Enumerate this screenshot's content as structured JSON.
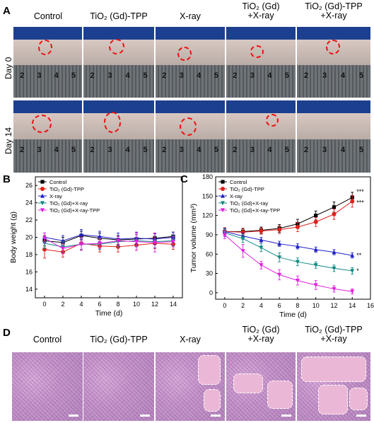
{
  "panel_labels": {
    "a": "A",
    "b": "B",
    "c": "C",
    "d": "D"
  },
  "groups": [
    "Control",
    "TiO₂ (Gd)-TPP",
    "X-ray",
    "TiO₂ (Gd)\n+X-ray",
    "TiO₂ (Gd)-TPP\n+X-ray"
  ],
  "row_labels": [
    "Day 0",
    "Day 14"
  ],
  "ruler_numbers": [
    [
      "2",
      "3",
      "4",
      "5"
    ],
    [
      "2",
      "3",
      "4",
      "5"
    ],
    [
      "2",
      "3",
      "4",
      "5"
    ],
    [
      "2",
      "3",
      "4",
      "5"
    ],
    [
      "2",
      "3",
      "4",
      "5"
    ]
  ],
  "colors": {
    "control": "#000000",
    "tio2_tpp": "#e0201b",
    "xray": "#1f1fc8",
    "tio2_xray": "#108a82",
    "tpp_xray": "#e020e0",
    "circle": "#e11111"
  },
  "chart_data": [
    {
      "type": "line",
      "xlabel": "Time (d)",
      "ylabel": "Body weight (g)",
      "x": [
        0,
        2,
        4,
        6,
        8,
        10,
        12,
        14
      ],
      "xticks": [
        "0",
        "2",
        "4",
        "6",
        "8",
        "10",
        "12",
        "14"
      ],
      "yticks": [
        "14",
        "16",
        "18",
        "20",
        "22",
        "24",
        "26"
      ],
      "xlim": [
        -1,
        15
      ],
      "ylim": [
        13,
        27
      ],
      "legend_position": "top-left",
      "series": [
        {
          "name": "Control",
          "color": "#000000",
          "marker": "square",
          "values": [
            19.6,
            19.4,
            20.2,
            19.9,
            19.7,
            19.8,
            19.9,
            20.1
          ],
          "err": [
            0.6,
            0.6,
            0.5,
            0.6,
            0.5,
            0.5,
            0.6,
            0.5
          ]
        },
        {
          "name": "TiO₂ (Gd)-TPP",
          "color": "#e0201b",
          "marker": "circle",
          "values": [
            18.6,
            18.3,
            19.3,
            19.0,
            18.9,
            19.1,
            19.3,
            19.2
          ],
          "err": [
            1.0,
            0.6,
            0.8,
            0.7,
            0.6,
            0.6,
            0.6,
            0.6
          ]
        },
        {
          "name": "X-ray",
          "color": "#1f1fc8",
          "marker": "triangle",
          "values": [
            20.0,
            19.6,
            20.3,
            20.1,
            19.8,
            19.9,
            19.8,
            20.0
          ],
          "err": [
            0.5,
            0.6,
            0.6,
            0.6,
            0.7,
            0.7,
            0.6,
            0.6
          ]
        },
        {
          "name": "TiO₂ (Gd)+X-ray",
          "color": "#108a82",
          "marker": "tridown",
          "values": [
            19.3,
            18.9,
            19.2,
            19.2,
            19.5,
            19.6,
            19.5,
            19.6
          ],
          "err": [
            0.6,
            0.6,
            0.6,
            0.6,
            0.6,
            0.7,
            0.7,
            0.6
          ]
        },
        {
          "name": "TiO₂ (Gd)+X-ray-TPP",
          "color": "#e020e0",
          "marker": "tridown",
          "values": [
            19.9,
            18.7,
            19.2,
            19.3,
            19.6,
            19.5,
            19.4,
            19.5
          ],
          "err": [
            0.6,
            0.6,
            0.7,
            0.6,
            0.5,
            1.0,
            1.1,
            0.6
          ]
        }
      ]
    },
    {
      "type": "line",
      "xlabel": "Time (d)",
      "ylabel": "Tumor volume (mm³)",
      "x": [
        0,
        2,
        4,
        6,
        8,
        10,
        12,
        14
      ],
      "xticks": [
        "0",
        "2",
        "4",
        "6",
        "8",
        "10",
        "12",
        "14",
        "16"
      ],
      "yticks": [
        "0",
        "30",
        "60",
        "90",
        "120",
        "150",
        "180"
      ],
      "xlim": [
        -1,
        16
      ],
      "ylim": [
        -10,
        180
      ],
      "legend_position": "top-left",
      "series": [
        {
          "name": "Control",
          "color": "#000000",
          "marker": "square",
          "values": [
            95,
            95,
            97,
            100,
            107,
            120,
            133,
            148
          ],
          "err": [
            6,
            5,
            5,
            6,
            7,
            7,
            8,
            8
          ],
          "sig": "***"
        },
        {
          "name": "TiO₂ (Gd)-TPP",
          "color": "#e0201b",
          "marker": "circle",
          "values": [
            95,
            94,
            96,
            98,
            102,
            110,
            122,
            142
          ],
          "err": [
            6,
            5,
            5,
            6,
            7,
            7,
            8,
            9
          ],
          "sig": "***"
        },
        {
          "name": "X-ray",
          "color": "#1f1fc8",
          "marker": "triangle",
          "values": [
            95,
            88,
            82,
            76,
            72,
            67,
            63,
            58
          ],
          "err": [
            5,
            5,
            4,
            4,
            4,
            4,
            4,
            4
          ],
          "sig": "**"
        },
        {
          "name": "TiO₂ (Gd)+X-ray",
          "color": "#108a82",
          "marker": "tridown",
          "values": [
            93,
            84,
            70,
            55,
            48,
            43,
            38,
            34
          ],
          "err": [
            6,
            6,
            6,
            7,
            6,
            5,
            5,
            5
          ],
          "sig": "*"
        },
        {
          "name": "TiO₂ (Gd)+X-ray-TPP",
          "color": "#e020e0",
          "marker": "tridown",
          "values": [
            90,
            65,
            43,
            28,
            19,
            12,
            6,
            2
          ],
          "err": [
            6,
            10,
            6,
            8,
            7,
            7,
            5,
            4
          ],
          "sig": ""
        }
      ]
    }
  ]
}
